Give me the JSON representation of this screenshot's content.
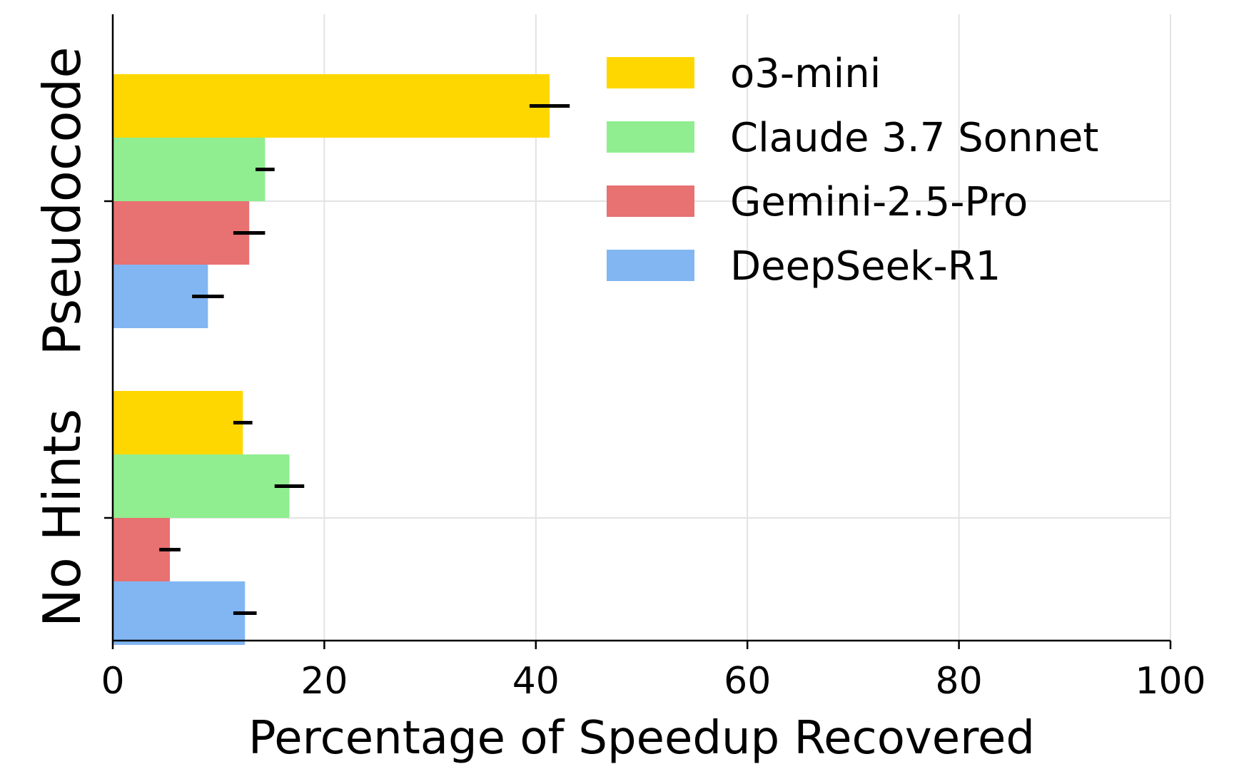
{
  "chart_data": {
    "type": "bar",
    "orientation": "horizontal",
    "categories": [
      "Pseudocode",
      "No Hints"
    ],
    "series": [
      {
        "name": "o3-mini",
        "color": "#FFD700",
        "values": [
          41.3,
          12.3
        ],
        "errors": [
          1.9,
          0.9
        ]
      },
      {
        "name": "Claude 3.7 Sonnet",
        "color": "#90EE90",
        "values": [
          14.4,
          16.7
        ],
        "errors": [
          0.9,
          1.4
        ]
      },
      {
        "name": "Gemini-2.5-Pro",
        "color": "#E87171",
        "values": [
          12.9,
          5.4
        ],
        "errors": [
          1.5,
          1.0
        ]
      },
      {
        "name": "DeepSeek-R1",
        "color": "#82B6F3",
        "values": [
          9.0,
          12.5
        ],
        "errors": [
          1.5,
          1.1
        ]
      }
    ],
    "xlabel": "Percentage of Speedup Recovered",
    "ylabel": "",
    "xlim": [
      0,
      100
    ],
    "xticks": [
      "0",
      "20",
      "40",
      "60",
      "80",
      "100"
    ],
    "grid": true,
    "legend_position": "top-right"
  }
}
